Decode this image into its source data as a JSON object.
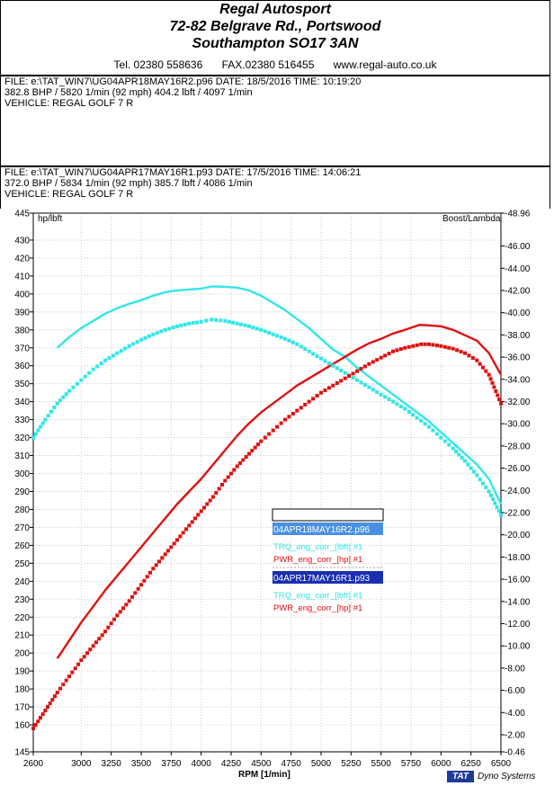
{
  "header": {
    "company": "Regal Autosport",
    "address1": "72-82 Belgrave Rd., Portswood",
    "address2": "Southampton SO17 3AN",
    "tel": "Tel. 02380 558636",
    "fax": "FAX.02380 516455",
    "web": "www.regal-auto.co.uk"
  },
  "run1": {
    "file_line": "FILE: e:\\TAT_WIN7\\UG04APR18MAY16R2.p96  DATE: 18/5/2016  TIME: 10:19:20",
    "power_line": "382.8 BHP / 5820 1/min (92 mph)    404.2 lbft / 4097 1/min",
    "vehicle_line": "VEHICLE: REGAL GOLF 7 R"
  },
  "run2": {
    "file_line": "FILE: e:\\TAT_WIN7\\UG04APR17MAY16R1.p93  DATE: 17/5/2016  TIME: 14:06:21",
    "power_line": "372.0 BHP / 5834 1/min (92 mph)    385.7 lbft / 4086 1/min",
    "vehicle_line": "VEHICLE: REGAL GOLF 7 R"
  },
  "footer": {
    "logo_tat": "TAT",
    "logo_text": "Dyno Systems"
  },
  "chart_data": {
    "type": "line",
    "xlabel": "RPM  [1/min]",
    "ylabel_left": "hp/lbft",
    "ylabel_right": "Boost/Lambda",
    "xlim": [
      2600,
      6500
    ],
    "ylim_left": [
      145,
      445
    ],
    "ylim_right": [
      0.46,
      48.96
    ],
    "x_ticks": [
      2600,
      3000,
      3250,
      3500,
      3750,
      4000,
      4250,
      4500,
      4750,
      5000,
      5250,
      5500,
      5750,
      6000,
      6250,
      6500
    ],
    "y_left_ticks": [
      145,
      160,
      170,
      180,
      190,
      200,
      210,
      220,
      230,
      240,
      250,
      260,
      270,
      280,
      290,
      300,
      310,
      320,
      330,
      340,
      350,
      360,
      370,
      380,
      390,
      400,
      410,
      420,
      430,
      445
    ],
    "y_right_ticks": [
      "0.46",
      "2.00",
      "4.00",
      "6.00",
      "8.00",
      "10.00",
      "12.00",
      "14.00",
      "16.00",
      "18.00",
      "20.00",
      "22.00",
      "24.00",
      "26.00",
      "28.00",
      "30.00",
      "32.00",
      "34.00",
      "36.00",
      "38.00",
      "40.00",
      "42.00",
      "44.00",
      "46.00",
      "48.96"
    ],
    "grid": true,
    "legend": {
      "placement": "center-right",
      "groups": [
        {
          "file": "04APR18MAY16R2.p96",
          "bg": "#4a90e2",
          "entries": [
            {
              "label": "TRQ_eng_corr_[lbft] #1",
              "color": "#33e6e6"
            },
            {
              "label": "PWR_eng_corr_[hp] #1",
              "color": "#e01010"
            }
          ]
        },
        {
          "file": "04APR17MAY16R1.p93",
          "bg": "#1a2fb0",
          "entries": [
            {
              "label": "TRQ_eng_corr_[lbft] #1",
              "color": "#33e6e6"
            },
            {
              "label": "PWR_eng_corr_[hp] #1",
              "color": "#e01010"
            }
          ]
        }
      ]
    },
    "series": [
      {
        "name": "TRQ_eng_corr_[lbft] #1",
        "file": "04APR18MAY16R2.p96",
        "style": "solid",
        "color": "#33e6e6",
        "x": [
          2800,
          2900,
          3000,
          3100,
          3200,
          3300,
          3400,
          3500,
          3600,
          3700,
          3800,
          3900,
          4000,
          4097,
          4200,
          4300,
          4400,
          4500,
          4600,
          4700,
          4800,
          4900,
          5000,
          5100,
          5200,
          5300,
          5400,
          5500,
          5600,
          5700,
          5800,
          5900,
          6000,
          6100,
          6200,
          6300,
          6400,
          6500
        ],
        "y": [
          370,
          376,
          381,
          385,
          389,
          392,
          394.5,
          396.5,
          399,
          401,
          402,
          402.5,
          403,
          404.2,
          404,
          403.5,
          402,
          399,
          395,
          391,
          386,
          381,
          375,
          369,
          365,
          359,
          354,
          349,
          344,
          339,
          334,
          329,
          323,
          317,
          311,
          305,
          297,
          283
        ]
      },
      {
        "name": "PWR_eng_corr_[hp] #1",
        "file": "04APR18MAY16R2.p96",
        "style": "solid",
        "color": "#e01010",
        "x": [
          2800,
          2900,
          3000,
          3100,
          3200,
          3300,
          3400,
          3500,
          3600,
          3700,
          3800,
          3900,
          4000,
          4100,
          4200,
          4300,
          4400,
          4500,
          4600,
          4700,
          4800,
          4900,
          5000,
          5100,
          5200,
          5300,
          5400,
          5500,
          5600,
          5700,
          5820,
          5900,
          6000,
          6100,
          6200,
          6300,
          6400,
          6500
        ],
        "y": [
          197,
          207,
          217,
          226,
          235,
          243,
          251,
          259,
          267,
          275,
          283,
          290,
          297,
          305,
          313,
          321,
          328,
          334,
          339,
          344,
          349,
          353,
          357,
          361,
          365,
          369,
          372.5,
          375,
          378,
          380,
          382.8,
          382.5,
          382,
          380,
          377,
          374,
          367,
          355
        ]
      },
      {
        "name": "TRQ_eng_corr_[lbft] #1",
        "file": "04APR17MAY16R1.p93",
        "style": "dotted",
        "color": "#33e6e6",
        "x": [
          2600,
          2700,
          2800,
          2900,
          3000,
          3100,
          3200,
          3300,
          3400,
          3500,
          3600,
          3700,
          3800,
          3900,
          4000,
          4086,
          4200,
          4300,
          4400,
          4500,
          4600,
          4700,
          4800,
          4900,
          5000,
          5100,
          5200,
          5300,
          5400,
          5500,
          5600,
          5700,
          5800,
          5900,
          6000,
          6100,
          6200,
          6300,
          6400,
          6500
        ],
        "y": [
          320,
          330,
          339,
          346,
          352,
          358,
          363,
          367,
          371,
          374.5,
          377.5,
          380,
          382,
          383.5,
          384.5,
          385.7,
          385,
          383.5,
          382,
          380,
          377.5,
          375,
          372,
          368,
          364,
          360,
          356,
          352,
          348,
          344,
          340,
          336,
          331,
          326,
          320,
          314,
          307,
          299,
          290,
          277
        ]
      },
      {
        "name": "PWR_eng_corr_[hp] #1",
        "file": "04APR17MAY16R1.p93",
        "style": "dotted",
        "color": "#e01010",
        "x": [
          2600,
          2700,
          2800,
          2900,
          3000,
          3100,
          3200,
          3300,
          3400,
          3500,
          3600,
          3700,
          3800,
          3900,
          4000,
          4100,
          4200,
          4300,
          4400,
          4500,
          4600,
          4700,
          4800,
          4900,
          5000,
          5100,
          5200,
          5300,
          5400,
          5500,
          5600,
          5700,
          5834,
          5900,
          6000,
          6100,
          6200,
          6300,
          6400,
          6500
        ],
        "y": [
          158,
          168,
          178,
          187,
          196,
          204,
          212,
          221,
          229,
          238,
          247,
          255,
          263,
          271,
          279,
          287,
          296,
          304,
          311,
          318,
          324,
          330,
          335,
          340,
          345,
          349,
          353,
          357,
          361,
          364.5,
          368,
          370,
          372,
          372,
          371,
          369.5,
          367,
          363,
          355,
          339
        ]
      }
    ]
  }
}
